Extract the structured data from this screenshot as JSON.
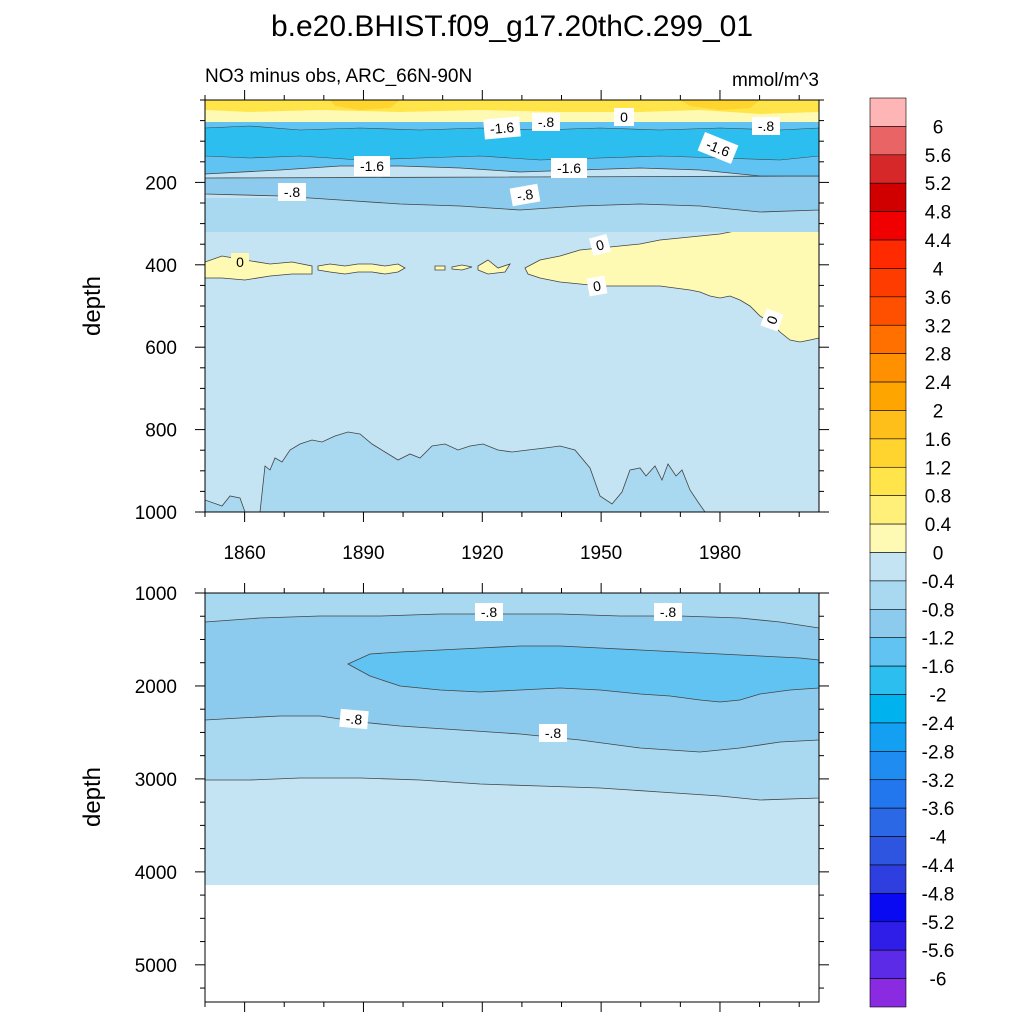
{
  "chart_data": {
    "type": "contour",
    "title": "b.e20.BHIST.f09_g17.20thC.299_01",
    "subtitle_left": "NO3 minus obs, ARC_66N-90N",
    "subtitle_right": "mmol/m^3",
    "x_range": [
      1850,
      2005
    ],
    "x_ticks": [
      1860,
      1890,
      1920,
      1950,
      1980
    ],
    "x_tick_labels": [
      "1860",
      "1890",
      "1920",
      "1950",
      "1980"
    ],
    "panels": [
      {
        "name": "upper",
        "ylabel": "depth",
        "y_range": [
          0,
          1000
        ],
        "y_ticks": [
          200,
          400,
          600,
          800,
          1000
        ],
        "y_tick_labels": [
          "200",
          "400",
          "600",
          "800",
          "1000"
        ],
        "contour_labels": [
          "-1.6",
          "-.8",
          "0",
          "-.8",
          "-1.6",
          "-1.6",
          "-1.6",
          "-.8",
          "-.8",
          "0",
          "0",
          "0",
          "0"
        ]
      },
      {
        "name": "lower",
        "ylabel": "depth",
        "y_range": [
          1000,
          5400
        ],
        "y_ticks": [
          1000,
          2000,
          3000,
          4000,
          5000
        ],
        "y_tick_labels": [
          "1000",
          "2000",
          "3000",
          "4000",
          "5000"
        ],
        "contour_labels": [
          "-.8",
          "-.8",
          "-.8",
          "-.8"
        ]
      }
    ],
    "colorbar": {
      "labels": [
        "6",
        "5.6",
        "5.2",
        "4.8",
        "4.4",
        "4",
        "3.6",
        "3.2",
        "2.8",
        "2.4",
        "2",
        "1.6",
        "1.2",
        "0.8",
        "0.4",
        "0",
        "-0.4",
        "-0.8",
        "-1.2",
        "-1.6",
        "-2",
        "-2.4",
        "-2.8",
        "-3.2",
        "-3.6",
        "-4",
        "-4.4",
        "-4.8",
        "-5.2",
        "-5.6",
        "-6"
      ],
      "colors": [
        "#FDB5B5",
        "#E96464",
        "#D62828",
        "#D00000",
        "#F00000",
        "#FF2A00",
        "#FF3C00",
        "#FF5000",
        "#FF7000",
        "#FF9000",
        "#FFA500",
        "#FFBF1A",
        "#FFD42E",
        "#FFE54A",
        "#FFF07A",
        "#FFFAB3",
        "#C4E4F4",
        "#A9D9F1",
        "#8CCBEE",
        "#60C3F2",
        "#2DBEF0",
        "#00B2EE",
        "#13A0F2",
        "#1E8CF0",
        "#2277EE",
        "#2B68E5",
        "#2E55E0",
        "#2E3EDF",
        "#0A0AF2",
        "#2E1EE8",
        "#5C2BE8",
        "#8A2BE2"
      ]
    }
  }
}
